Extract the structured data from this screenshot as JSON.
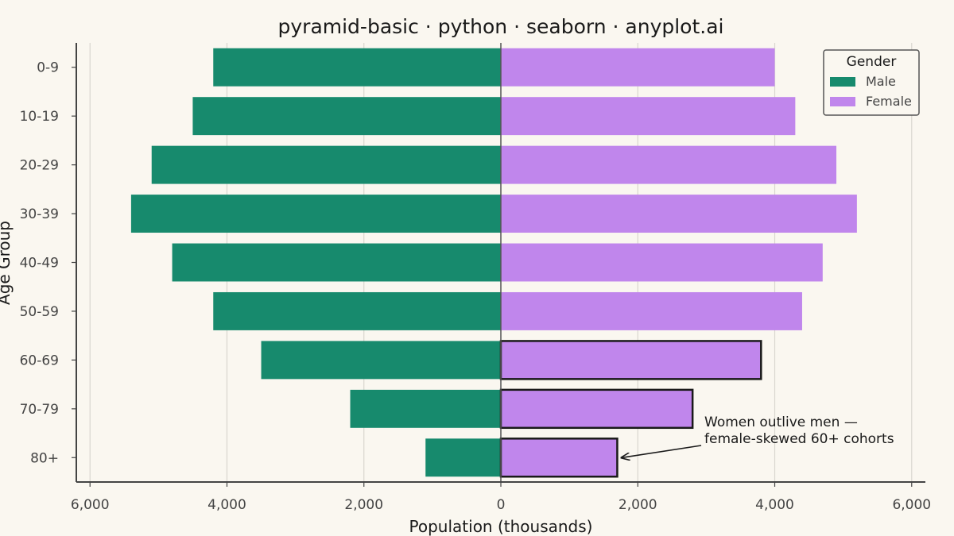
{
  "chart_data": {
    "type": "bar",
    "orientation": "horizontal",
    "title": "pyramid-basic · python · seaborn · anyplot.ai",
    "xlabel": "Population (thousands)",
    "ylabel": "Age Group",
    "categories": [
      "0-9",
      "10-19",
      "20-29",
      "30-39",
      "40-49",
      "50-59",
      "60-69",
      "70-79",
      "80+"
    ],
    "series": [
      {
        "name": "Male",
        "color": "#178a6d",
        "side": "left",
        "values": [
          4200,
          4500,
          5100,
          5400,
          4800,
          4200,
          3500,
          2200,
          1100
        ]
      },
      {
        "name": "Female",
        "color": "#c086ec",
        "side": "right",
        "values": [
          4000,
          4300,
          4900,
          5200,
          4700,
          4400,
          3800,
          2800,
          1700
        ]
      }
    ],
    "highlighted": {
      "series": "Female",
      "categories": [
        "60-69",
        "70-79",
        "80+"
      ]
    },
    "xlim": [
      -6200,
      6200
    ],
    "xticks": [
      -6000,
      -4000,
      -2000,
      0,
      2000,
      4000,
      6000
    ],
    "xtick_labels": [
      "6,000",
      "4,000",
      "2,000",
      "0",
      "2,000",
      "4,000",
      "6,000"
    ],
    "grid": "vertical",
    "legend": {
      "title": "Gender",
      "position": "top-right",
      "entries": [
        "Male",
        "Female"
      ]
    },
    "annotation": {
      "lines": [
        "Women outlive men —",
        "female-skewed 60+ cohorts"
      ],
      "points_to": {
        "series": "Female",
        "category": "80+"
      }
    }
  }
}
